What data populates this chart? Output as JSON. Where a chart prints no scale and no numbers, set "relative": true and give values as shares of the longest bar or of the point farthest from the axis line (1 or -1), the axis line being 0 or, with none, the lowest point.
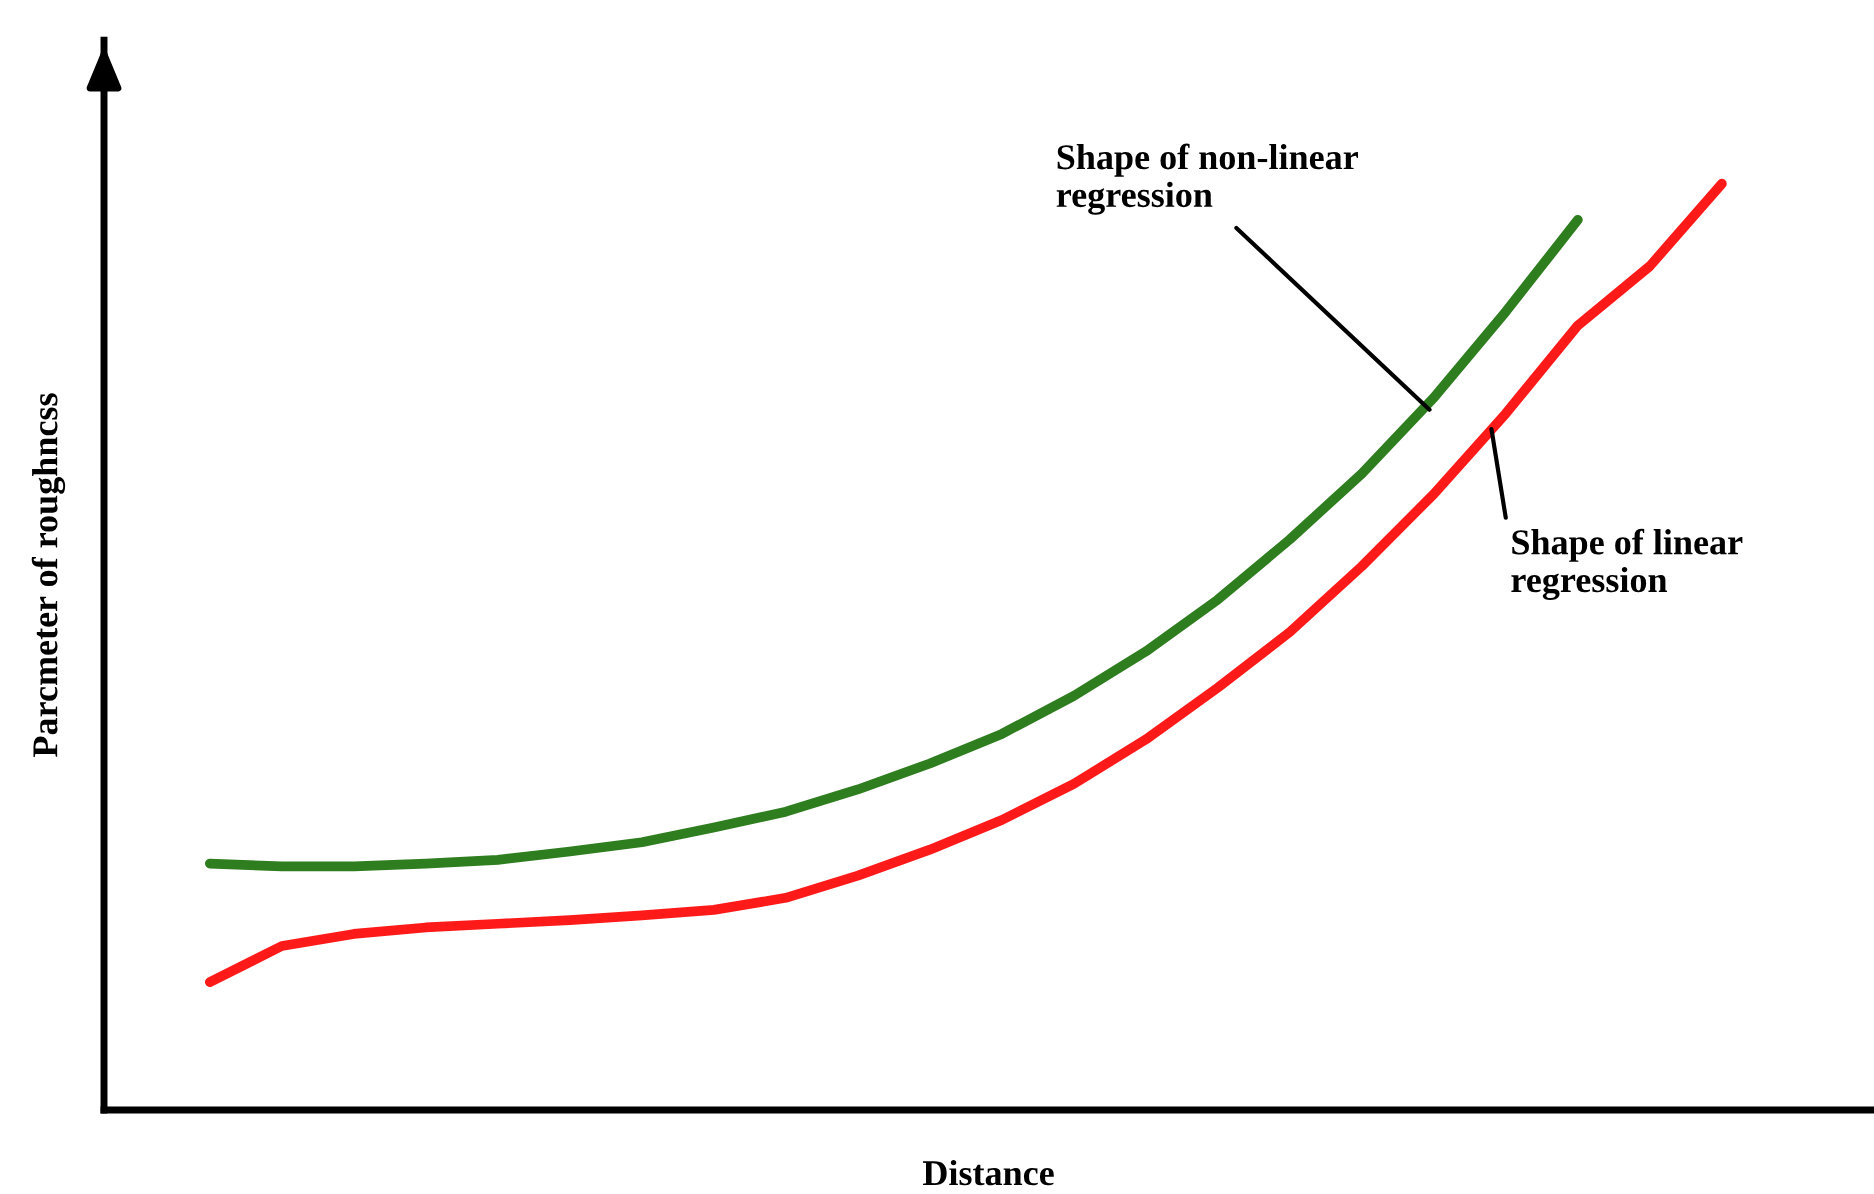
{
  "chart_data": {
    "type": "line",
    "relative": true,
    "xlabel": "Distance",
    "ylabel": "Parcmeter of roughncss",
    "categories": [
      null,
      null,
      null,
      null,
      null,
      null,
      null,
      null,
      null,
      null,
      null,
      null,
      null,
      null,
      null,
      null,
      null,
      null,
      null,
      null,
      null,
      null
    ],
    "series": [
      {
        "color": "#2e7d1f",
        "values": [
          0.266,
          0.263,
          0.263,
          0.266,
          0.27,
          0.279,
          0.289,
          0.305,
          0.322,
          0.346,
          0.374,
          0.406,
          0.447,
          0.495,
          0.551,
          0.616,
          0.687,
          0.769,
          0.862,
          0.961,
          null,
          null
        ]
      },
      {
        "color": "#ff1a1a",
        "values": [
          0.138,
          0.177,
          0.19,
          0.197,
          0.201,
          0.205,
          0.21,
          0.216,
          0.229,
          0.253,
          0.281,
          0.313,
          0.352,
          0.4,
          0.456,
          0.516,
          0.587,
          0.665,
          0.752,
          0.847,
          0.911,
          1
        ]
      }
    ],
    "annotations": [
      "Shape of non-linear\nregression",
      "Shape of linear\nregression"
    ],
    "legend": false
  }
}
